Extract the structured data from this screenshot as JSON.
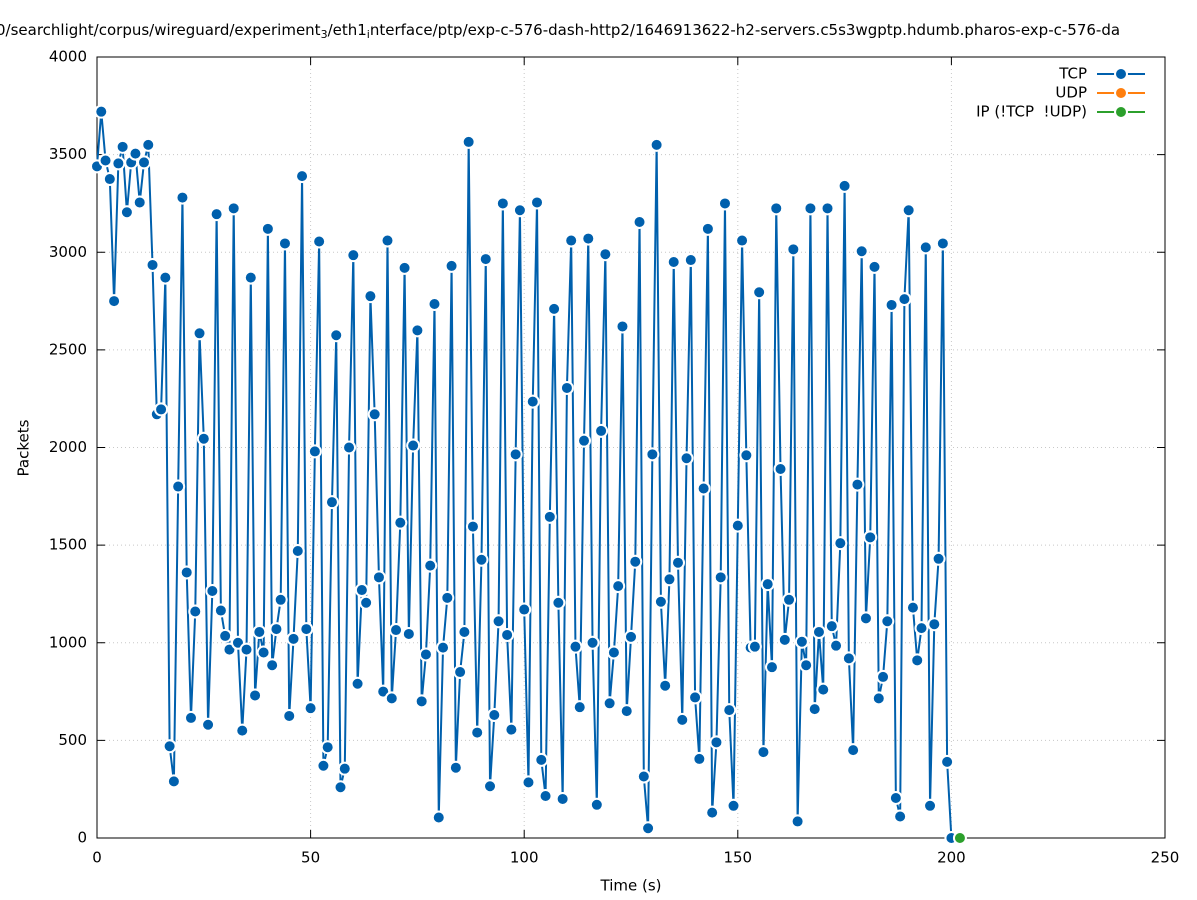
{
  "chart_data": {
    "type": "line",
    "title_parts": [
      {
        "text": "0/searchlight/corpus/wireguard/experiment"
      },
      {
        "text": "3",
        "sub": true
      },
      {
        "text": "/eth1"
      },
      {
        "text": "i",
        "sub": true
      },
      {
        "text": "nterface/ptp/exp-c-576-dash-http2/1646913622-h2-servers.c5s3wgptp.hdumb.pharos-exp-c-576-da"
      }
    ],
    "xlabel": "Time (s)",
    "ylabel": "Packets",
    "xlim": [
      0,
      250
    ],
    "xticks": [
      0,
      50,
      100,
      150,
      200,
      250
    ],
    "ylim": [
      0,
      4000
    ],
    "yticks": [
      0,
      500,
      1000,
      1500,
      2000,
      2500,
      3000,
      3500,
      4000
    ],
    "grid": true,
    "legend": "top-right",
    "series": [
      {
        "name": "TCP",
        "color": "#0060ad",
        "x": [
          0,
          1,
          2,
          3,
          4,
          5,
          6,
          7,
          8,
          9,
          10,
          11,
          12,
          13,
          14,
          15,
          16,
          17,
          18,
          19,
          20,
          21,
          22,
          23,
          24,
          25,
          26,
          27,
          28,
          29,
          30,
          31,
          32,
          33,
          34,
          35,
          36,
          37,
          38,
          39,
          40,
          41,
          42,
          43,
          44,
          45,
          46,
          47,
          48,
          49,
          50,
          51,
          52,
          53,
          54,
          55,
          56,
          57,
          58,
          59,
          60,
          61,
          62,
          63,
          64,
          65,
          66,
          67,
          68,
          69,
          70,
          71,
          72,
          73,
          74,
          75,
          76,
          77,
          78,
          79,
          80,
          81,
          82,
          83,
          84,
          85,
          86,
          87,
          88,
          89,
          90,
          91,
          92,
          93,
          94,
          95,
          96,
          97,
          98,
          99,
          100,
          101,
          102,
          103,
          104,
          105,
          106,
          107,
          108,
          109,
          110,
          111,
          112,
          113,
          114,
          115,
          116,
          117,
          118,
          119,
          120,
          121,
          122,
          123,
          124,
          125,
          126,
          127,
          128,
          129,
          130,
          131,
          132,
          133,
          134,
          135,
          136,
          137,
          138,
          139,
          140,
          141,
          142,
          143,
          144,
          145,
          146,
          147,
          148,
          149,
          150,
          151,
          152,
          153,
          154,
          155,
          156,
          157,
          158,
          159,
          160,
          161,
          162,
          163,
          164,
          165,
          166,
          167,
          168,
          169,
          170,
          171,
          172,
          173,
          174,
          175,
          176,
          177,
          178,
          179,
          180,
          181,
          182,
          183,
          184,
          185,
          186,
          187,
          188,
          189,
          190,
          191,
          192,
          193,
          194,
          195,
          196,
          197,
          198,
          199,
          200
        ],
        "values": [
          3440,
          3720,
          3470,
          3375,
          2750,
          3455,
          3540,
          3205,
          3460,
          3505,
          3255,
          3460,
          3550,
          2935,
          2170,
          2195,
          2870,
          470,
          290,
          1800,
          3280,
          1360,
          615,
          1160,
          2585,
          2045,
          580,
          1265,
          3195,
          1165,
          1035,
          965,
          3225,
          1000,
          550,
          965,
          2870,
          730,
          1055,
          950,
          3120,
          885,
          1070,
          1220,
          3045,
          625,
          1020,
          1470,
          3390,
          1070,
          665,
          1980,
          3055,
          370,
          465,
          1720,
          2575,
          260,
          355,
          2000,
          2985,
          790,
          1270,
          1205,
          2775,
          2170,
          1335,
          750,
          3060,
          715,
          1065,
          1615,
          2920,
          1045,
          2010,
          2600,
          700,
          940,
          1395,
          2735,
          105,
          975,
          1230,
          2930,
          360,
          850,
          1055,
          3565,
          1595,
          540,
          1425,
          2965,
          265,
          630,
          1110,
          3250,
          1040,
          555,
          1965,
          3215,
          1170,
          285,
          2235,
          3255,
          400,
          215,
          1645,
          2710,
          1205,
          200,
          2305,
          3060,
          980,
          670,
          2035,
          3070,
          1000,
          170,
          2085,
          2990,
          690,
          950,
          1290,
          2620,
          650,
          1030,
          1415,
          3155,
          315,
          50,
          1965,
          3550,
          1210,
          780,
          1325,
          2950,
          1410,
          605,
          1945,
          2960,
          720,
          405,
          1790,
          3120,
          130,
          490,
          1335,
          3250,
          655,
          165,
          1600,
          3060,
          1960,
          975,
          980,
          2795,
          440,
          1300,
          875,
          3225,
          1890,
          1015,
          1220,
          3015,
          85,
          1005,
          885,
          3225,
          660,
          1055,
          760,
          3225,
          1085,
          985,
          1510,
          3340,
          920,
          450,
          1810,
          3005,
          1125,
          1540,
          2925,
          715,
          825,
          1110,
          2730,
          205,
          110,
          2760,
          3215,
          1180,
          910,
          1075,
          3025,
          165,
          1095,
          1430,
          3045,
          390,
          0
        ]
      },
      {
        "name": "UDP",
        "color": "#ff7f0e",
        "x": [],
        "values": []
      },
      {
        "name": "IP (!TCP  !UDP)",
        "color": "#2ca02c",
        "x": [
          202
        ],
        "values": [
          0
        ]
      }
    ]
  }
}
